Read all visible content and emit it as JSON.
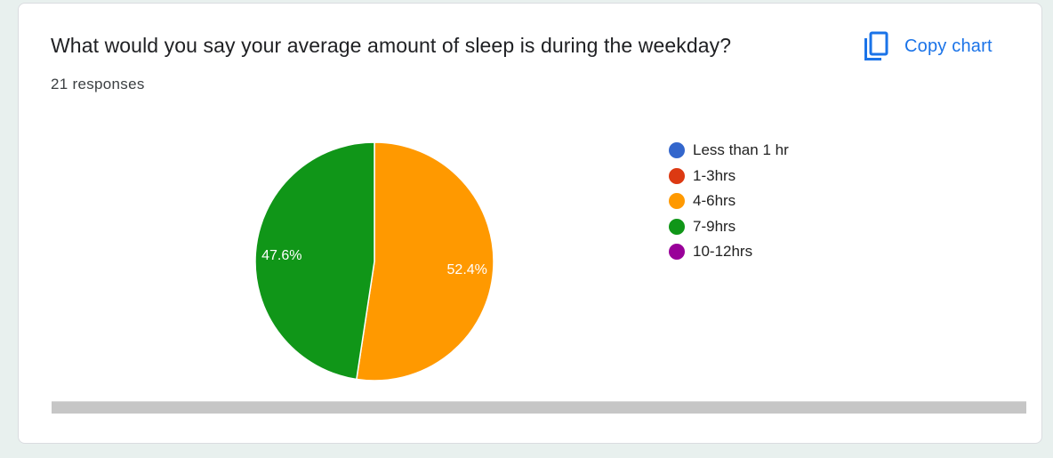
{
  "question": {
    "title": "What would you say your average amount of sleep is during the weekday?",
    "responses": "21 responses"
  },
  "copy_chart": {
    "label": "Copy chart",
    "icon": "copy-icon",
    "color": "#1a73e8"
  },
  "chart_data": {
    "type": "pie",
    "categories": [
      "Less than 1 hr",
      "1-3hrs",
      "4-6hrs",
      "7-9hrs",
      "10-12hrs"
    ],
    "colors": [
      "#3366cc",
      "#dc3912",
      "#ff9900",
      "#109618",
      "#990099"
    ],
    "values": [
      0,
      0,
      52.4,
      47.6,
      0
    ],
    "data_labels": [
      "",
      "",
      "52.4%",
      "47.6%",
      ""
    ],
    "legend_position": "right"
  }
}
